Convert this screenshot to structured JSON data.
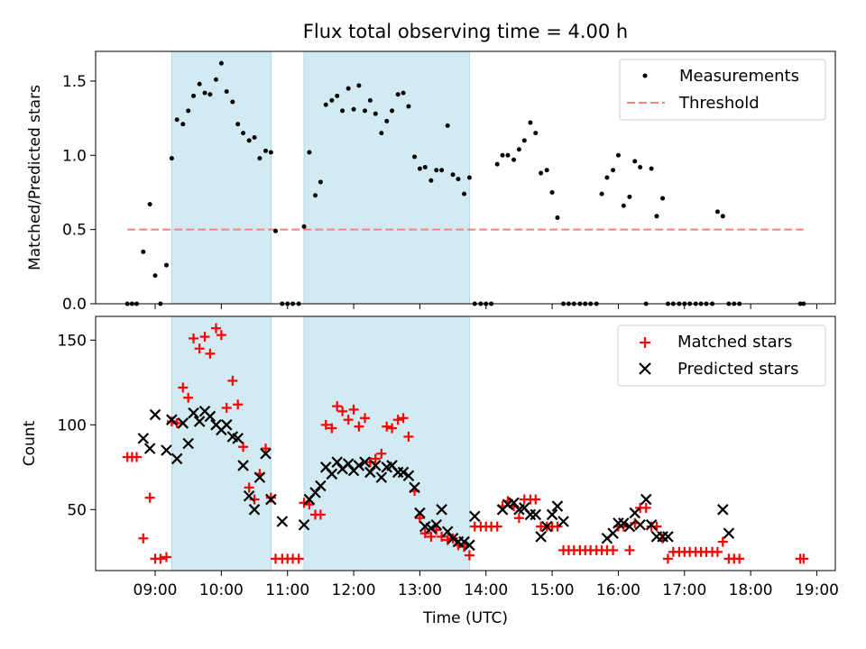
{
  "chart_data": [
    {
      "type": "scatter",
      "title": "Flux total observing time = 4.00 h",
      "ylabel": "Matched/Predicted stars",
      "xlabel": "",
      "xlim": [
        8.1,
        19.28
      ],
      "ylim": [
        0,
        1.7
      ],
      "x_scale": "time-of-day (hours, UTC)",
      "x_ticks": [
        9,
        10,
        11,
        12,
        13,
        14,
        15,
        16,
        17,
        18,
        19
      ],
      "y_ticks": [
        0.0,
        0.5,
        1.0,
        1.5
      ],
      "y_tick_labels": [
        "0.0",
        "0.5",
        "1.0",
        "1.5"
      ],
      "shaded_spans": [
        [
          9.25,
          10.75
        ],
        [
          11.25,
          13.75
        ]
      ],
      "shade_color": "#add8e6",
      "legend_position": "upper right",
      "legend": [
        "Measurements",
        "Threshold"
      ],
      "series": [
        {
          "name": "Measurements",
          "marker": "dot",
          "color": "#000000",
          "x": [
            8.58,
            8.65,
            8.72,
            8.82,
            8.92,
            9.0,
            9.08,
            9.17,
            9.25,
            9.33,
            9.42,
            9.5,
            9.58,
            9.67,
            9.75,
            9.83,
            9.92,
            10.0,
            10.08,
            10.17,
            10.25,
            10.33,
            10.42,
            10.5,
            10.58,
            10.67,
            10.75,
            10.82,
            10.92,
            11.0,
            11.08,
            11.17,
            11.25,
            11.33,
            11.42,
            11.5,
            11.58,
            11.67,
            11.75,
            11.83,
            11.92,
            12.0,
            12.08,
            12.17,
            12.25,
            12.33,
            12.42,
            12.5,
            12.58,
            12.67,
            12.75,
            12.83,
            12.92,
            13.0,
            13.08,
            13.17,
            13.25,
            13.33,
            13.42,
            13.5,
            13.58,
            13.67,
            13.75,
            13.83,
            13.92,
            14.0,
            14.08,
            14.17,
            14.25,
            14.33,
            14.42,
            14.5,
            14.58,
            14.67,
            14.75,
            14.83,
            14.92,
            15.0,
            15.08,
            15.17,
            15.25,
            15.33,
            15.42,
            15.5,
            15.58,
            15.67,
            15.75,
            15.83,
            15.92,
            16.0,
            16.08,
            16.17,
            16.25,
            16.33,
            16.42,
            16.5,
            16.58,
            16.67,
            16.75,
            16.83,
            16.92,
            17.0,
            17.08,
            17.17,
            17.25,
            17.33,
            17.42,
            17.5,
            17.58,
            17.67,
            17.75,
            17.83,
            18.75,
            18.8
          ],
          "y": [
            0.0,
            0.0,
            0.0,
            0.35,
            0.67,
            0.19,
            0.0,
            0.26,
            0.98,
            1.24,
            1.21,
            1.3,
            1.4,
            1.48,
            1.42,
            1.41,
            1.51,
            1.62,
            1.43,
            1.36,
            1.21,
            1.15,
            1.1,
            1.12,
            0.98,
            1.03,
            1.02,
            0.49,
            0.0,
            0.0,
            0.0,
            0.0,
            0.52,
            1.02,
            0.73,
            0.82,
            1.34,
            1.37,
            1.4,
            1.3,
            1.45,
            1.31,
            1.47,
            1.3,
            1.37,
            1.28,
            1.15,
            1.23,
            1.3,
            1.41,
            1.42,
            1.33,
            0.99,
            0.91,
            0.92,
            0.83,
            0.9,
            0.9,
            1.2,
            0.87,
            0.84,
            0.74,
            0.85,
            0.0,
            0.0,
            0.0,
            0.0,
            0.94,
            1.0,
            1.0,
            0.97,
            1.04,
            1.1,
            1.22,
            1.15,
            0.88,
            0.9,
            0.75,
            0.58,
            0.0,
            0.0,
            0.0,
            0.0,
            0.0,
            0.0,
            0.0,
            0.74,
            0.85,
            0.9,
            1.0,
            0.66,
            0.72,
            0.96,
            0.92,
            0.0,
            0.91,
            0.59,
            0.71,
            0.0,
            0.0,
            0.0,
            0.0,
            0.0,
            0.0,
            0.0,
            0.0,
            0.0,
            0.62,
            0.59,
            0.0,
            0.0,
            0.0,
            0.0,
            0.0
          ]
        },
        {
          "name": "Threshold",
          "style": "dashed-line",
          "color": "#ff7f7f",
          "x": [
            8.58,
            18.8
          ],
          "y": [
            0.5,
            0.5
          ]
        }
      ]
    },
    {
      "type": "scatter",
      "title": "",
      "ylabel": "Count",
      "xlabel": "Time (UTC)",
      "xlim": [
        8.1,
        19.28
      ],
      "ylim": [
        14,
        164
      ],
      "x_ticks": [
        9,
        10,
        11,
        12,
        13,
        14,
        15,
        16,
        17,
        18,
        19
      ],
      "x_tick_labels": [
        "09:00",
        "10:00",
        "11:00",
        "12:00",
        "13:00",
        "14:00",
        "15:00",
        "16:00",
        "17:00",
        "18:00",
        "19:00"
      ],
      "y_ticks": [
        50,
        100,
        150
      ],
      "y_tick_labels": [
        "50",
        "100",
        "150"
      ],
      "shaded_spans": [
        [
          9.25,
          10.75
        ],
        [
          11.25,
          13.75
        ]
      ],
      "shade_color": "#add8e6",
      "legend_position": "upper right",
      "legend": [
        "Matched stars",
        "Predicted stars"
      ],
      "series": [
        {
          "name": "Matched stars",
          "marker": "plus",
          "color": "#ff0000",
          "x": [
            8.58,
            8.65,
            8.72,
            8.82,
            8.92,
            9.0,
            9.08,
            9.17,
            9.25,
            9.33,
            9.42,
            9.5,
            9.58,
            9.67,
            9.75,
            9.83,
            9.92,
            10.0,
            10.08,
            10.17,
            10.25,
            10.33,
            10.42,
            10.5,
            10.58,
            10.67,
            10.75,
            10.82,
            10.92,
            11.0,
            11.08,
            11.17,
            11.25,
            11.33,
            11.42,
            11.5,
            11.58,
            11.67,
            11.75,
            11.83,
            11.92,
            12.0,
            12.08,
            12.17,
            12.25,
            12.33,
            12.42,
            12.5,
            12.58,
            12.67,
            12.75,
            12.83,
            12.92,
            13.0,
            13.08,
            13.17,
            13.25,
            13.33,
            13.42,
            13.5,
            13.58,
            13.67,
            13.75,
            13.83,
            13.92,
            14.0,
            14.08,
            14.17,
            14.25,
            14.33,
            14.42,
            14.5,
            14.58,
            14.67,
            14.75,
            14.83,
            14.92,
            15.0,
            15.08,
            15.17,
            15.25,
            15.33,
            15.42,
            15.5,
            15.58,
            15.67,
            15.75,
            15.83,
            15.92,
            16.0,
            16.08,
            16.17,
            16.25,
            16.33,
            16.42,
            16.5,
            16.58,
            16.67,
            16.75,
            16.83,
            16.92,
            17.0,
            17.08,
            17.17,
            17.25,
            17.33,
            17.42,
            17.5,
            17.58,
            17.67,
            17.75,
            17.83,
            18.75,
            18.8
          ],
          "y": [
            81,
            81,
            81,
            33,
            57,
            21,
            21,
            22,
            102,
            101,
            122,
            116,
            151,
            145,
            152,
            142,
            157,
            153,
            110,
            126,
            112,
            87,
            63,
            56,
            71,
            86,
            57,
            21,
            21,
            21,
            21,
            21,
            54,
            53,
            47,
            47,
            100,
            98,
            111,
            108,
            103,
            109,
            99,
            104,
            78,
            80,
            83,
            99,
            98,
            103,
            104,
            93,
            61,
            45,
            36,
            34,
            38,
            34,
            32,
            33,
            29,
            28,
            23,
            40,
            40,
            40,
            40,
            40,
            52,
            55,
            52,
            45,
            56,
            56,
            56,
            40,
            40,
            40,
            40,
            26,
            26,
            26,
            26,
            26,
            26,
            26,
            26,
            26,
            26,
            40,
            40,
            26,
            42,
            51,
            51,
            40,
            40,
            33,
            21,
            25,
            25,
            25,
            25,
            25,
            25,
            25,
            25,
            25,
            31,
            21,
            21,
            21,
            21,
            21
          ]
        },
        {
          "name": "Predicted stars",
          "marker": "x",
          "color": "#000000",
          "x": [
            8.82,
            8.92,
            9.0,
            9.17,
            9.25,
            9.33,
            9.42,
            9.5,
            9.58,
            9.67,
            9.75,
            9.83,
            9.92,
            10.0,
            10.08,
            10.17,
            10.25,
            10.33,
            10.42,
            10.5,
            10.58,
            10.67,
            10.75,
            10.92,
            11.25,
            11.33,
            11.42,
            11.5,
            11.58,
            11.67,
            11.75,
            11.83,
            11.92,
            12.0,
            12.08,
            12.17,
            12.25,
            12.33,
            12.42,
            12.5,
            12.58,
            12.67,
            12.75,
            12.83,
            12.92,
            13.0,
            13.08,
            13.17,
            13.25,
            13.33,
            13.42,
            13.5,
            13.58,
            13.67,
            13.75,
            13.83,
            14.25,
            14.33,
            14.42,
            14.5,
            14.58,
            14.67,
            14.75,
            14.83,
            14.92,
            15.0,
            15.08,
            15.17,
            15.83,
            15.92,
            16.0,
            16.08,
            16.17,
            16.25,
            16.33,
            16.42,
            16.5,
            16.58,
            16.67,
            16.75,
            17.58,
            17.67
          ],
          "y": [
            92,
            86,
            106,
            85,
            103,
            80,
            101,
            89,
            107,
            102,
            108,
            105,
            100,
            97,
            100,
            93,
            92,
            76,
            58,
            50,
            69,
            83,
            56,
            43,
            41,
            56,
            60,
            64,
            75,
            71,
            78,
            74,
            77,
            73,
            76,
            78,
            72,
            76,
            69,
            75,
            76,
            72,
            72,
            70,
            63,
            48,
            40,
            39,
            41,
            50,
            37,
            33,
            31,
            31,
            29,
            46,
            50,
            53,
            54,
            50,
            51,
            47,
            47,
            34,
            40,
            47,
            52,
            43,
            33,
            36,
            42,
            42,
            40,
            48,
            41,
            56,
            41,
            34,
            34,
            34,
            50,
            36
          ]
        }
      ]
    }
  ]
}
